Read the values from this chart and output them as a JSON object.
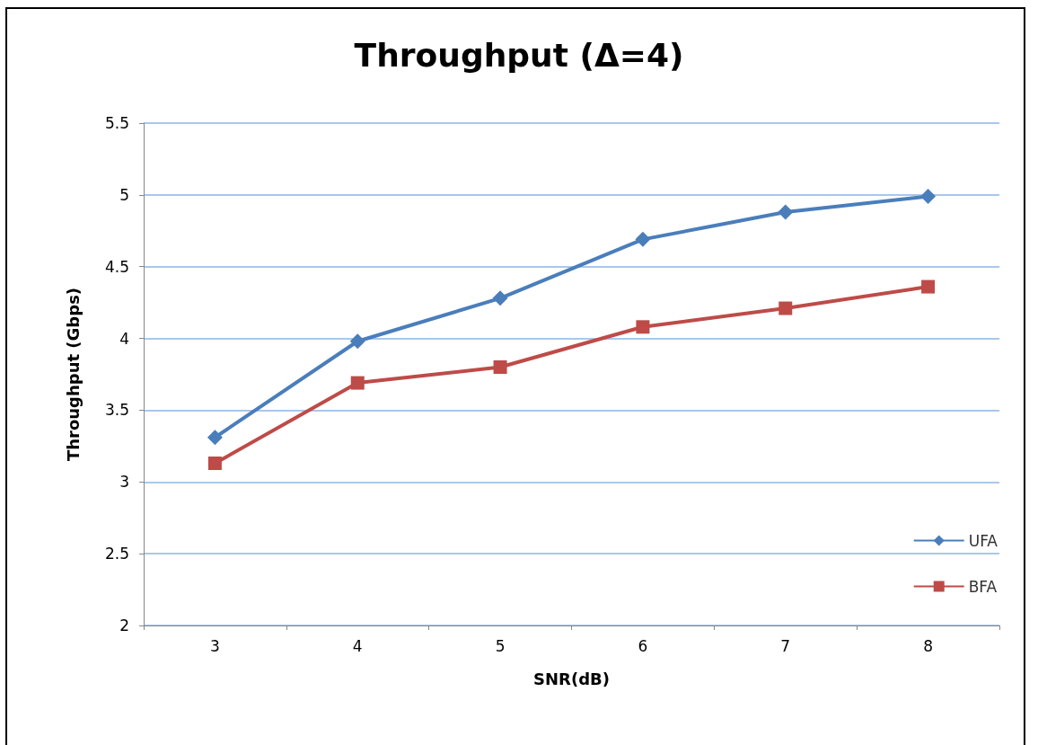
{
  "chart_data": {
    "type": "line",
    "title": "Throughput (Δ=4)",
    "xlabel": "SNR(dB)",
    "ylabel": "Throughput (Gbps)",
    "categories": [
      "3",
      "4",
      "5",
      "6",
      "7",
      "8"
    ],
    "series": [
      {
        "name": "UFA",
        "color": "#4a7ebb",
        "marker": "diamond",
        "values": [
          3.31,
          3.98,
          4.28,
          4.69,
          4.88,
          4.99
        ]
      },
      {
        "name": "BFA",
        "color": "#be4b48",
        "marker": "square",
        "values": [
          3.13,
          3.69,
          3.8,
          4.08,
          4.21,
          4.36
        ]
      }
    ],
    "ylim": [
      2,
      5.5
    ],
    "yticks": [
      2,
      2.5,
      3,
      3.5,
      4,
      4.5,
      5,
      5.5
    ],
    "grid": "y",
    "legend": "bottom right",
    "line_style": "solid"
  }
}
